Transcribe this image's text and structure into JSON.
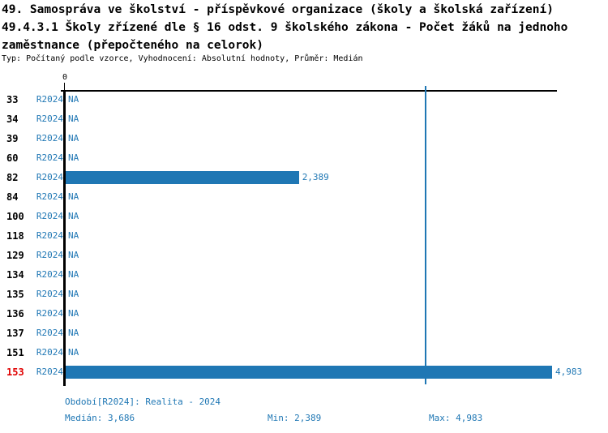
{
  "title": {
    "line1": "49. Samospráva ve školství - příspěvkové organizace (školy a školská zařízení)",
    "line2": "49.4.3.1 Školy zřízené dle § 16 odst. 9 školského zákona - Počet žáků na jednoho",
    "line3": "zaměstnance (přepočteného na celorok)",
    "subtitle": "Typ: Počítaný podle vzorce, Vyhodnocení: Absolutní hodnoty, Průměr: Medián"
  },
  "chart_data": {
    "type": "bar",
    "orientation": "horizontal",
    "axis": {
      "origin_label": "0",
      "xlim": [
        0,
        4983
      ],
      "grid": false
    },
    "series_label": "R2024",
    "median_value": 3686,
    "categories": [
      "33",
      "34",
      "39",
      "60",
      "82",
      "84",
      "100",
      "118",
      "129",
      "134",
      "135",
      "136",
      "137",
      "151",
      "153"
    ],
    "rows": [
      {
        "id": "33",
        "period": "R2024",
        "value": null,
        "display": "NA",
        "highlight": false
      },
      {
        "id": "34",
        "period": "R2024",
        "value": null,
        "display": "NA",
        "highlight": false
      },
      {
        "id": "39",
        "period": "R2024",
        "value": null,
        "display": "NA",
        "highlight": false
      },
      {
        "id": "60",
        "period": "R2024",
        "value": null,
        "display": "NA",
        "highlight": false
      },
      {
        "id": "82",
        "period": "R2024",
        "value": 2389,
        "display": "2,389",
        "highlight": false
      },
      {
        "id": "84",
        "period": "R2024",
        "value": null,
        "display": "NA",
        "highlight": false
      },
      {
        "id": "100",
        "period": "R2024",
        "value": null,
        "display": "NA",
        "highlight": false
      },
      {
        "id": "118",
        "period": "R2024",
        "value": null,
        "display": "NA",
        "highlight": false
      },
      {
        "id": "129",
        "period": "R2024",
        "value": null,
        "display": "NA",
        "highlight": false
      },
      {
        "id": "134",
        "period": "R2024",
        "value": null,
        "display": "NA",
        "highlight": false
      },
      {
        "id": "135",
        "period": "R2024",
        "value": null,
        "display": "NA",
        "highlight": false
      },
      {
        "id": "136",
        "period": "R2024",
        "value": null,
        "display": "NA",
        "highlight": false
      },
      {
        "id": "137",
        "period": "R2024",
        "value": null,
        "display": "NA",
        "highlight": false
      },
      {
        "id": "151",
        "period": "R2024",
        "value": null,
        "display": "NA",
        "highlight": false
      },
      {
        "id": "153",
        "period": "R2024",
        "value": 4983,
        "display": "4,983",
        "highlight": true
      }
    ],
    "colors": {
      "bar": "#1f77b4",
      "blue_text": "#1f77b4",
      "median_line": "#1f77b4",
      "highlight_red": "#e00000",
      "axis": "#000000"
    }
  },
  "footer": {
    "period": "Období[R2024]: Realita - 2024",
    "median": "Medián: 3,686",
    "min": "Min: 2,389",
    "max": "Max: 4,983"
  }
}
